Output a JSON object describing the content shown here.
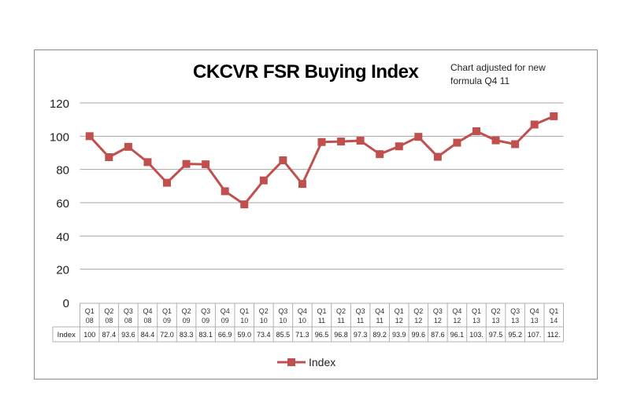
{
  "chart_data": {
    "type": "line",
    "title": "CKCVR FSR Buying Index",
    "annotation": "Chart adjusted for new formula  Q4 11",
    "categories": [
      [
        "Q1",
        "08"
      ],
      [
        "Q2",
        "08"
      ],
      [
        "Q3",
        "08"
      ],
      [
        "Q4",
        "08"
      ],
      [
        "Q1",
        "09"
      ],
      [
        "Q2",
        "09"
      ],
      [
        "Q3",
        "09"
      ],
      [
        "Q4",
        "09"
      ],
      [
        "Q1",
        "10"
      ],
      [
        "Q2",
        "10"
      ],
      [
        "Q3",
        "10"
      ],
      [
        "Q4",
        "10"
      ],
      [
        "Q1",
        "11"
      ],
      [
        "Q2",
        "11"
      ],
      [
        "Q3",
        "11"
      ],
      [
        "Q4",
        "11"
      ],
      [
        "Q1",
        "12"
      ],
      [
        "Q2",
        "12"
      ],
      [
        "Q3",
        "12"
      ],
      [
        "Q4",
        "12"
      ],
      [
        "Q1",
        "13"
      ],
      [
        "Q2",
        "13"
      ],
      [
        "Q3",
        "13"
      ],
      [
        "Q4",
        "13"
      ],
      [
        "Q1",
        "14"
      ]
    ],
    "series": [
      {
        "name": "Index",
        "color": "#c0504d",
        "marker": "square",
        "values": [
          100,
          87.4,
          93.6,
          84.4,
          72.0,
          83.3,
          83.1,
          66.9,
          59.0,
          73.4,
          85.5,
          71.3,
          96.5,
          96.8,
          97.3,
          89.2,
          93.9,
          99.6,
          87.6,
          96.1,
          103,
          97.5,
          95.2,
          107,
          112
        ],
        "table_labels": [
          "100",
          "87.4",
          "93.6",
          "84.4",
          "72.0",
          "83.3",
          "83.1",
          "66.9",
          "59.0",
          "73.4",
          "85.5",
          "71.3",
          "96.5",
          "96.8",
          "97.3",
          "89.2",
          "93.9",
          "99.6",
          "87.6",
          "96.1",
          "103.",
          "97.5",
          "95.2",
          "107.",
          "112."
        ]
      }
    ],
    "yticks": [
      "0",
      "20",
      "40",
      "60",
      "80",
      "100",
      "120"
    ],
    "ylim": [
      0,
      120
    ],
    "grid": true,
    "data_table": true,
    "legend": "bottom"
  }
}
